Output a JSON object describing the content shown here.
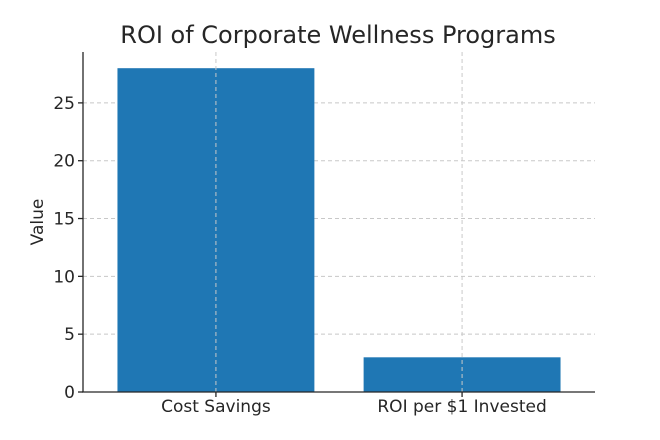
{
  "chart_data": {
    "type": "bar",
    "title": "ROI of Corporate Wellness Programs",
    "xlabel": "",
    "ylabel": "Value",
    "categories": [
      "Cost Savings",
      "ROI per $1 Invested"
    ],
    "values": [
      28,
      3
    ],
    "ylim": [
      0,
      29.4
    ],
    "yticks": [
      0,
      5,
      10,
      15,
      20,
      25
    ],
    "ytick_labels": [
      "0",
      "5",
      "10",
      "15",
      "20",
      "25"
    ],
    "grid": true,
    "bar_color": "#1f77b4",
    "grid_color": "#c8c8c8",
    "axis_color": "#262626"
  }
}
